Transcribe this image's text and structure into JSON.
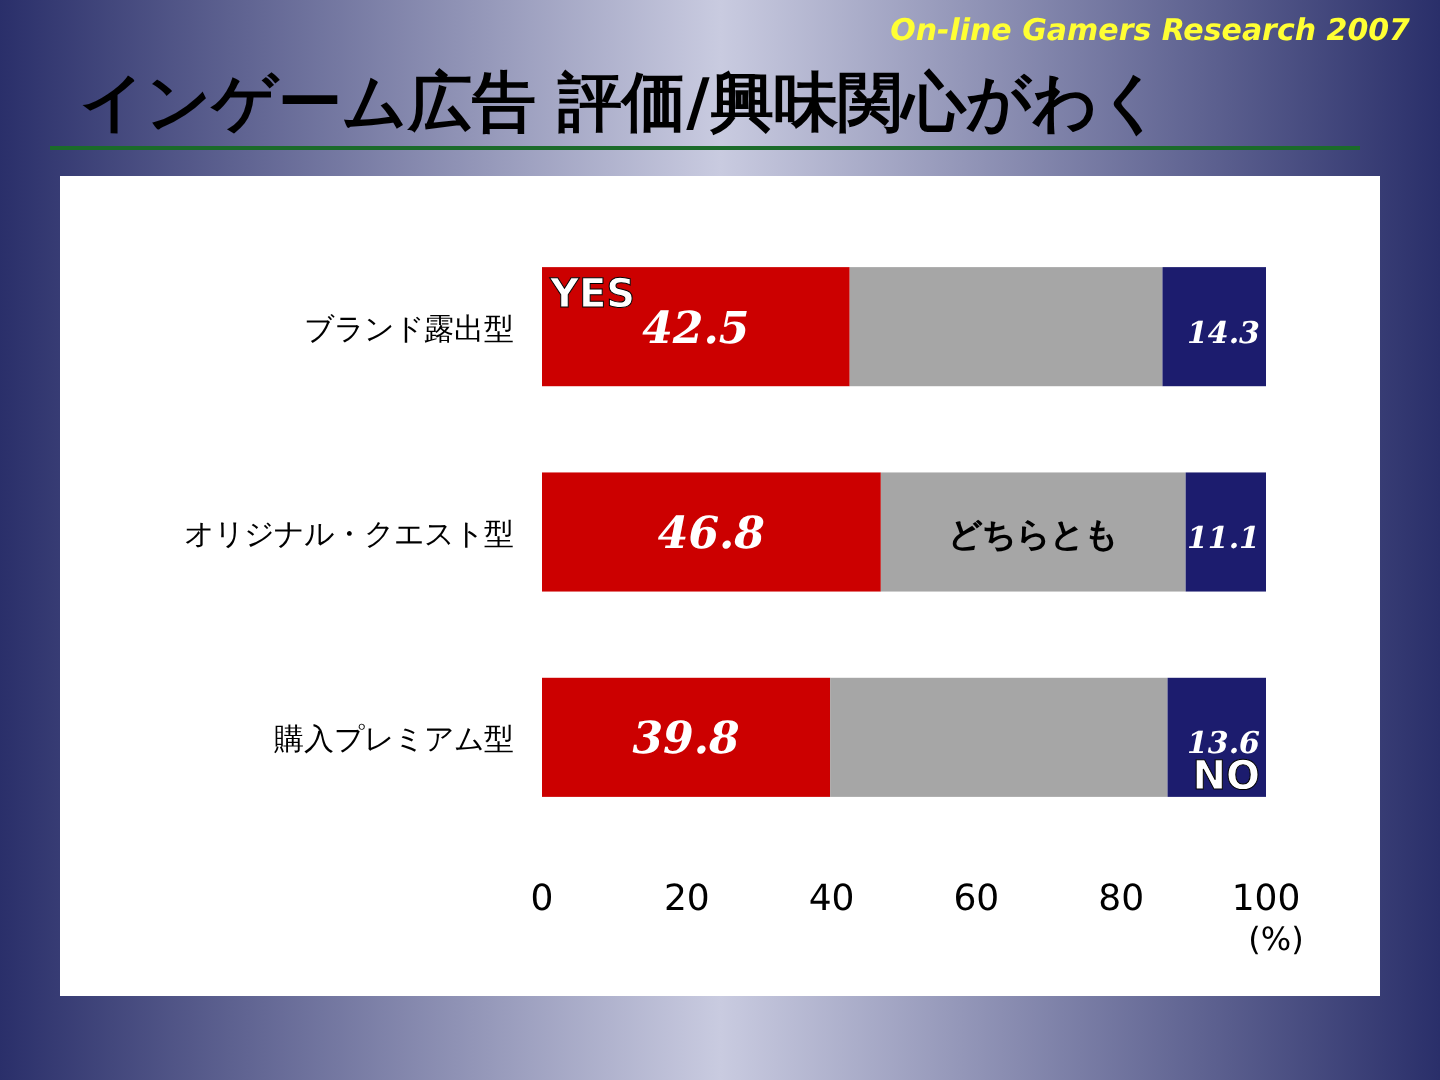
{
  "chart_data": {
    "type": "bar",
    "orientation": "horizontal",
    "stacked": true,
    "title": "インゲーム広告 評価/興味関心がわく",
    "subtitle": "On-line Gamers Research 2007",
    "xlabel": "(%)",
    "categories": [
      "ブランド露出型",
      "オリジナル・クエスト型",
      "購入プレミアム型"
    ],
    "xlim": [
      0,
      100
    ],
    "xticks": [
      0,
      20,
      40,
      60,
      80,
      100
    ],
    "grid": false,
    "series": [
      {
        "name": "YES",
        "color": "#cc0000",
        "values": [
          42.5,
          46.8,
          39.8
        ],
        "value_labels": [
          "42.5",
          "46.8",
          "39.8"
        ]
      },
      {
        "name": "どちらとも",
        "color": "#a6a6a6",
        "values": [
          43.2,
          42.1,
          46.6
        ],
        "value_labels": [
          null,
          null,
          null
        ]
      },
      {
        "name": "NO",
        "color": "#1c1c6e",
        "values": [
          14.3,
          11.1,
          13.6
        ],
        "value_labels": [
          "14.3",
          "11.1",
          "13.6"
        ]
      }
    ]
  }
}
